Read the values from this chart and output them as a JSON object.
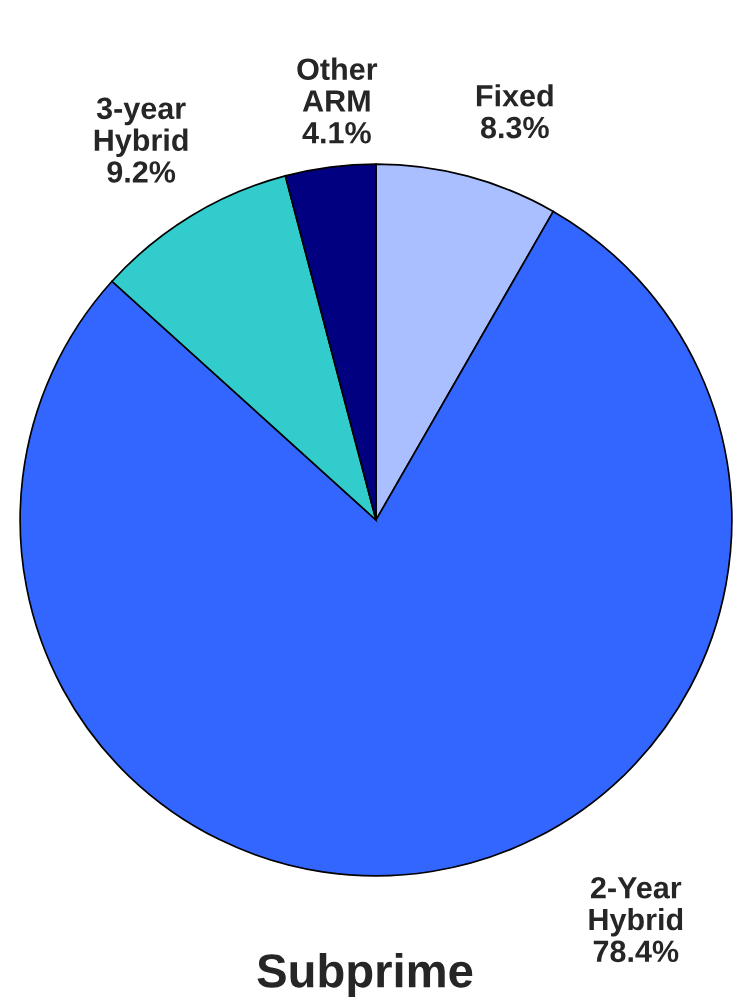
{
  "chart_data": {
    "type": "pie",
    "title": "Subprime",
    "categories": [
      "Fixed",
      "2-Year\nHybrid",
      "3-year\nHybrid",
      "Other\nARM"
    ],
    "values": [
      8.3,
      78.4,
      9.2,
      4.1
    ],
    "value_labels": [
      "8.3%",
      "78.4%",
      "9.2%",
      "4.1%"
    ],
    "colors": [
      "#a9bfff",
      "#3366ff",
      "#33cccc",
      "#000080"
    ]
  }
}
